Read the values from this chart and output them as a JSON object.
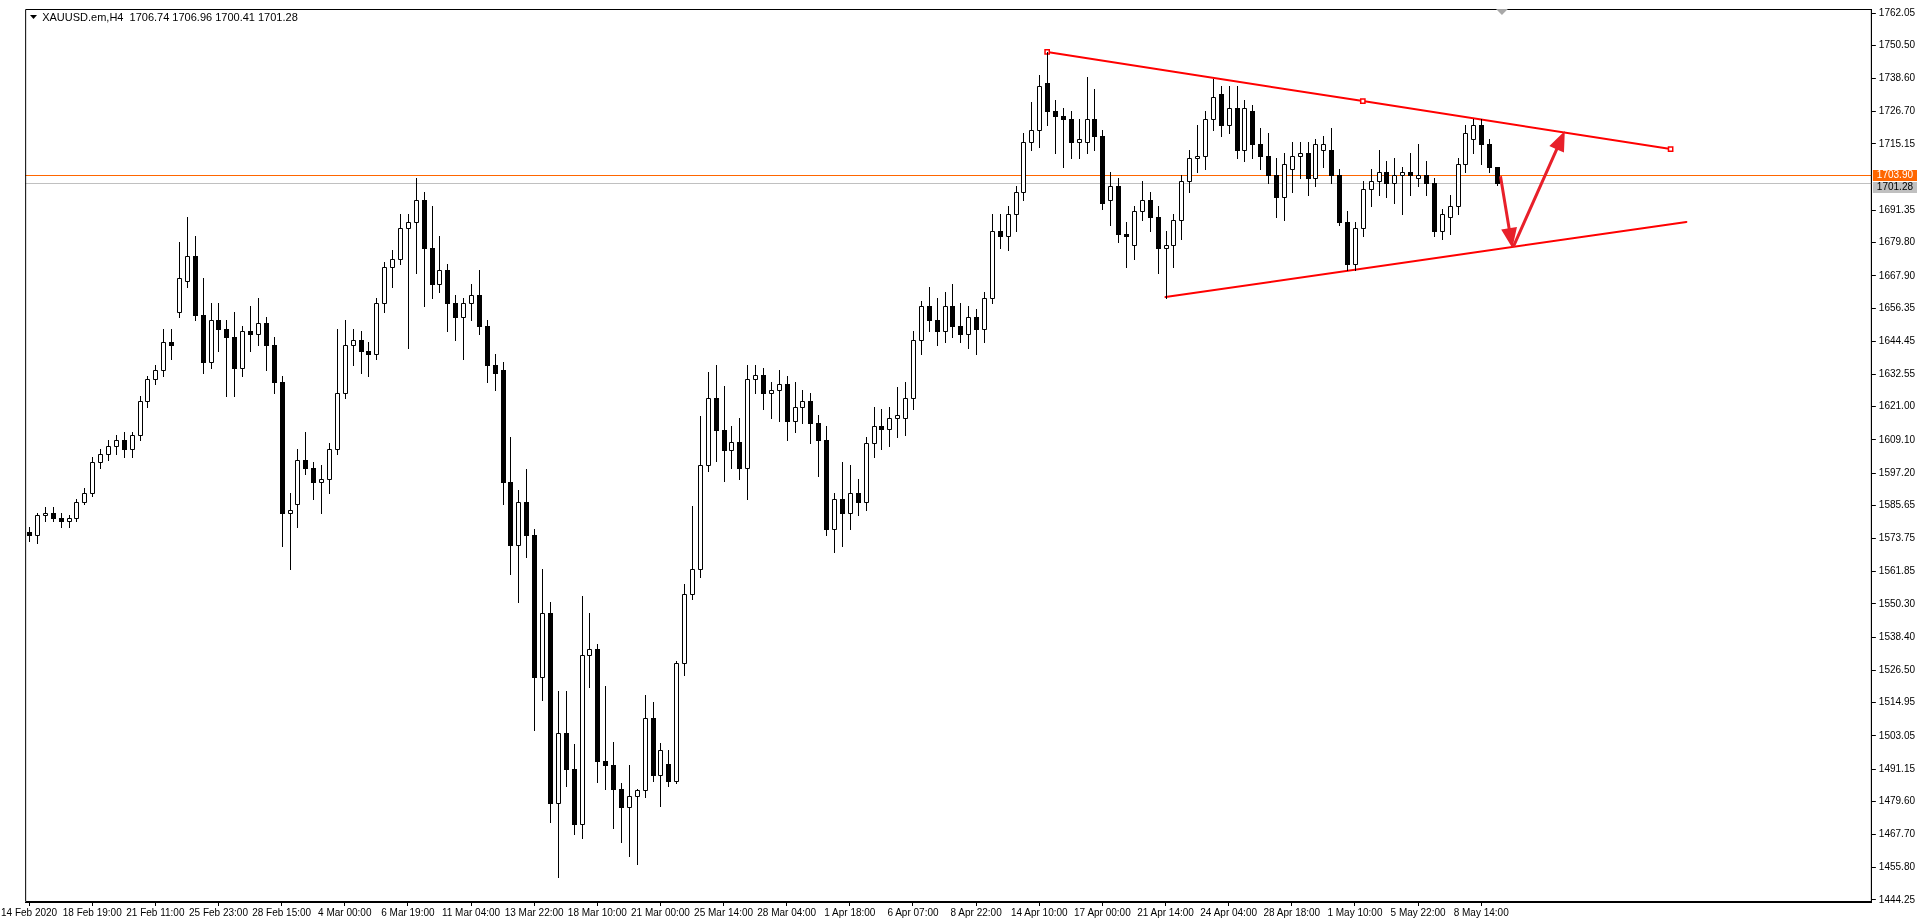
{
  "chart_data": {
    "type": "candlestick",
    "title": "XAUUSD.em,H4  1706.74 1706.96 1700.41 1701.28",
    "categories": [
      "14 Feb 2020",
      null,
      null,
      null,
      null,
      null,
      null,
      null,
      "18 Feb 19:00",
      null,
      null,
      null,
      null,
      null,
      null,
      null,
      "21 Feb 11:00",
      null,
      null,
      null,
      null,
      null,
      null,
      null,
      "25 Feb 23:00",
      null,
      null,
      null,
      null,
      null,
      null,
      null,
      "28 Feb 15:00",
      null,
      null,
      null,
      null,
      null,
      null,
      null,
      "4 Mar 00:00",
      null,
      null,
      null,
      null,
      null,
      null,
      null,
      "6 Mar 19:00",
      null,
      null,
      null,
      null,
      null,
      null,
      null,
      "11 Mar 04:00",
      null,
      null,
      null,
      null,
      null,
      null,
      null,
      "13 Mar 22:00",
      null,
      null,
      null,
      null,
      null,
      null,
      null,
      "18 Mar 10:00",
      null,
      null,
      null,
      null,
      null,
      null,
      null,
      "21 Mar 00:00",
      null,
      null,
      null,
      null,
      null,
      null,
      null,
      "25 Mar 14:00",
      null,
      null,
      null,
      null,
      null,
      null,
      null,
      "28 Mar 04:00",
      null,
      null,
      null,
      null,
      null,
      null,
      null,
      "1 Apr 18:00",
      null,
      null,
      null,
      null,
      null,
      null,
      null,
      "6 Apr 07:00",
      null,
      null,
      null,
      null,
      null,
      null,
      null,
      "8 Apr 22:00",
      null,
      null,
      null,
      null,
      null,
      null,
      null,
      "14 Apr 10:00",
      null,
      null,
      null,
      null,
      null,
      null,
      null,
      "17 Apr 00:00",
      null,
      null,
      null,
      null,
      null,
      null,
      null,
      "21 Apr 14:00",
      null,
      null,
      null,
      null,
      null,
      null,
      null,
      "24 Apr 04:00",
      null,
      null,
      null,
      null,
      null,
      null,
      null,
      "28 Apr 18:00",
      null,
      null,
      null,
      null,
      null,
      null,
      null,
      "1 May 10:00",
      null,
      null,
      null,
      null,
      null,
      null,
      null,
      "5 May 22:00",
      null,
      null,
      null,
      null,
      null,
      null,
      null,
      "8 May 14:00",
      null,
      null,
      null,
      null,
      null,
      null,
      null,
      null,
      null,
      null,
      null,
      null,
      null,
      null,
      null,
      null,
      null,
      null,
      null,
      null,
      null,
      null,
      null,
      null,
      null,
      null,
      null,
      null,
      null,
      null,
      null,
      null,
      null,
      null,
      null,
      null,
      null,
      null,
      null,
      null,
      null,
      null,
      null,
      null,
      null,
      null,
      null,
      null,
      null
    ],
    "ohlc": [
      [
        1576,
        1578,
        1573,
        1575
      ],
      [
        1575,
        1583,
        1572,
        1582
      ],
      [
        1582,
        1585,
        1580,
        1583
      ],
      [
        1583,
        1585,
        1580,
        1581
      ],
      [
        1581,
        1583,
        1578,
        1580
      ],
      [
        1580,
        1582,
        1578,
        1581
      ],
      [
        1581,
        1588,
        1580,
        1587
      ],
      [
        1587,
        1592,
        1586,
        1590
      ],
      [
        1590,
        1603,
        1589,
        1601
      ],
      [
        1601,
        1606,
        1599,
        1604
      ],
      [
        1604,
        1609,
        1602,
        1607
      ],
      [
        1607,
        1611,
        1604,
        1609
      ],
      [
        1609,
        1612,
        1603,
        1606
      ],
      [
        1606,
        1612,
        1603,
        1611
      ],
      [
        1611,
        1625,
        1609,
        1623
      ],
      [
        1623,
        1632,
        1621,
        1631
      ],
      [
        1631,
        1636,
        1629,
        1634
      ],
      [
        1634,
        1649,
        1632,
        1644
      ],
      [
        1644,
        1649,
        1638,
        1643
      ],
      [
        1655,
        1680,
        1653,
        1667
      ],
      [
        1666,
        1689,
        1664,
        1675
      ],
      [
        1675,
        1682,
        1652,
        1654
      ],
      [
        1654,
        1667,
        1633,
        1637
      ],
      [
        1637,
        1658,
        1635,
        1652
      ],
      [
        1652,
        1658,
        1641,
        1649
      ],
      [
        1649,
        1652,
        1625,
        1646
      ],
      [
        1646,
        1655,
        1625,
        1635
      ],
      [
        1635,
        1650,
        1632,
        1648
      ],
      [
        1648,
        1657,
        1641,
        1647
      ],
      [
        1647,
        1660,
        1643,
        1651
      ],
      [
        1651,
        1653,
        1634,
        1643
      ],
      [
        1643,
        1646,
        1626,
        1630
      ],
      [
        1630,
        1632,
        1571,
        1583
      ],
      [
        1583,
        1590,
        1563,
        1584
      ],
      [
        1586,
        1606,
        1578,
        1602
      ],
      [
        1602,
        1612,
        1597,
        1599
      ],
      [
        1599,
        1601,
        1588,
        1594
      ],
      [
        1594,
        1600,
        1583,
        1595
      ],
      [
        1595,
        1608,
        1590,
        1606
      ],
      [
        1606,
        1649,
        1604,
        1626
      ],
      [
        1626,
        1652,
        1624,
        1643
      ],
      [
        1643,
        1649,
        1636,
        1645
      ],
      [
        1645,
        1648,
        1633,
        1641
      ],
      [
        1641,
        1644,
        1632,
        1640
      ],
      [
        1640,
        1660,
        1638,
        1658
      ],
      [
        1658,
        1673,
        1655,
        1671
      ],
      [
        1671,
        1677,
        1664,
        1674
      ],
      [
        1674,
        1690,
        1672,
        1685
      ],
      [
        1685,
        1690,
        1642,
        1687
      ],
      [
        1687,
        1703,
        1669,
        1695
      ],
      [
        1695,
        1698,
        1657,
        1678
      ],
      [
        1678,
        1693,
        1660,
        1665
      ],
      [
        1665,
        1682,
        1662,
        1670
      ],
      [
        1670,
        1672,
        1648,
        1658
      ],
      [
        1658,
        1661,
        1645,
        1653
      ],
      [
        1653,
        1660,
        1638,
        1658
      ],
      [
        1658,
        1665,
        1652,
        1661
      ],
      [
        1661,
        1670,
        1647,
        1650
      ],
      [
        1650,
        1652,
        1630,
        1636
      ],
      [
        1636,
        1640,
        1627,
        1633
      ],
      [
        1634,
        1637,
        1586,
        1594
      ],
      [
        1594,
        1610,
        1561,
        1571.5
      ],
      [
        1571.5,
        1591,
        1551,
        1587
      ],
      [
        1587,
        1598.5,
        1567,
        1575
      ],
      [
        1575,
        1577,
        1505,
        1524
      ],
      [
        1524,
        1563,
        1516,
        1547
      ],
      [
        1547,
        1551,
        1472,
        1479
      ],
      [
        1479,
        1519,
        1452.5,
        1504
      ],
      [
        1504,
        1519,
        1485,
        1491
      ],
      [
        1491,
        1500,
        1468,
        1471.5
      ],
      [
        1471.5,
        1553,
        1466.5,
        1532
      ],
      [
        1532,
        1547,
        1520.5,
        1534
      ],
      [
        1534,
        1536,
        1486.5,
        1494
      ],
      [
        1494,
        1521,
        1484,
        1492.5
      ],
      [
        1492.5,
        1501,
        1470,
        1484
      ],
      [
        1484,
        1486,
        1465,
        1477.5
      ],
      [
        1477.5,
        1492.5,
        1460,
        1481.5
      ],
      [
        1481.5,
        1484,
        1457,
        1483.5
      ],
      [
        1483.5,
        1517.5,
        1481,
        1509.5
      ],
      [
        1509.5,
        1515,
        1487,
        1489
      ],
      [
        1489,
        1500.5,
        1478,
        1498
      ],
      [
        1493,
        1498,
        1485,
        1487
      ],
      [
        1487,
        1530,
        1486,
        1529
      ],
      [
        1529,
        1557.5,
        1525,
        1554
      ],
      [
        1554,
        1585.5,
        1552,
        1563
      ],
      [
        1563,
        1617.5,
        1560,
        1600
      ],
      [
        1600,
        1633.5,
        1598,
        1624
      ],
      [
        1624,
        1636,
        1601.5,
        1612.5
      ],
      [
        1612.5,
        1628.5,
        1594.5,
        1605.5
      ],
      [
        1605.5,
        1614,
        1599,
        1608.5
      ],
      [
        1608.5,
        1617,
        1595,
        1599
      ],
      [
        1599,
        1636,
        1588,
        1631
      ],
      [
        1631,
        1636,
        1626,
        1632.5
      ],
      [
        1632.5,
        1635,
        1620,
        1626
      ],
      [
        1626,
        1630,
        1617,
        1627
      ],
      [
        1627,
        1634,
        1616,
        1629
      ],
      [
        1629,
        1632,
        1609,
        1616
      ],
      [
        1616,
        1630,
        1612,
        1621
      ],
      [
        1621,
        1627,
        1615,
        1623
      ],
      [
        1623,
        1626,
        1608,
        1615
      ],
      [
        1615,
        1618,
        1596,
        1609
      ],
      [
        1609,
        1614,
        1575,
        1577
      ],
      [
        1577,
        1590,
        1569,
        1588
      ],
      [
        1588,
        1601,
        1571,
        1583
      ],
      [
        1583,
        1600,
        1577,
        1590
      ],
      [
        1590,
        1595,
        1582,
        1587
      ],
      [
        1587,
        1610,
        1584,
        1608
      ],
      [
        1608,
        1621,
        1603,
        1614
      ],
      [
        1614,
        1620,
        1606,
        1613
      ],
      [
        1613,
        1621,
        1607,
        1617
      ],
      [
        1617,
        1628,
        1610,
        1618
      ],
      [
        1617,
        1630,
        1611,
        1624
      ],
      [
        1624,
        1648,
        1620,
        1645
      ],
      [
        1645,
        1659,
        1640,
        1657
      ],
      [
        1657,
        1664,
        1648,
        1652
      ],
      [
        1652,
        1660,
        1643,
        1648
      ],
      [
        1648,
        1662,
        1644,
        1657
      ],
      [
        1657,
        1665,
        1646,
        1650
      ],
      [
        1650,
        1658,
        1644,
        1647
      ],
      [
        1647,
        1657,
        1642,
        1653
      ],
      [
        1653,
        1656,
        1640,
        1649
      ],
      [
        1649,
        1662,
        1644,
        1660
      ],
      [
        1660,
        1690,
        1658,
        1684
      ],
      [
        1684,
        1690,
        1678,
        1682
      ],
      [
        1682,
        1693,
        1677,
        1690
      ],
      [
        1690,
        1700,
        1684,
        1698
      ],
      [
        1698,
        1719,
        1695,
        1716
      ],
      [
        1716,
        1730,
        1713,
        1720
      ],
      [
        1720,
        1740,
        1714,
        1736
      ],
      [
        1737,
        1748,
        1722,
        1727
      ],
      [
        1727,
        1731,
        1712,
        1725
      ],
      [
        1725,
        1728,
        1707,
        1724
      ],
      [
        1724,
        1727,
        1710,
        1716
      ],
      [
        1716,
        1724,
        1710,
        1717
      ],
      [
        1716,
        1739,
        1712,
        1724
      ],
      [
        1724,
        1735,
        1713,
        1718
      ],
      [
        1718,
        1720,
        1692,
        1694
      ],
      [
        1695,
        1705,
        1686,
        1700
      ],
      [
        1700,
        1703,
        1680,
        1683
      ],
      [
        1683,
        1687,
        1671,
        1682
      ],
      [
        1679,
        1693,
        1674,
        1691
      ],
      [
        1691,
        1702,
        1688,
        1695
      ],
      [
        1695,
        1698,
        1684,
        1689
      ],
      [
        1689,
        1693,
        1669,
        1678
      ],
      [
        1678,
        1684,
        1660,
        1679
      ],
      [
        1679,
        1690,
        1671,
        1688
      ],
      [
        1688,
        1704,
        1681,
        1702
      ],
      [
        1702,
        1713,
        1698,
        1710
      ],
      [
        1710,
        1722,
        1705,
        1711
      ],
      [
        1711,
        1727,
        1706,
        1724
      ],
      [
        1724,
        1738.5,
        1720,
        1732
      ],
      [
        1733,
        1736,
        1718,
        1722
      ],
      [
        1722,
        1736,
        1719,
        1728
      ],
      [
        1728,
        1736,
        1710,
        1713
      ],
      [
        1713,
        1731,
        1709,
        1728
      ],
      [
        1727,
        1729,
        1710,
        1715
      ],
      [
        1715,
        1721,
        1706,
        1711
      ],
      [
        1711,
        1719,
        1701,
        1704
      ],
      [
        1704,
        1710,
        1689,
        1696
      ],
      [
        1696,
        1712,
        1688,
        1708
      ],
      [
        1706,
        1716,
        1698,
        1711
      ],
      [
        1711,
        1716,
        1703,
        1712
      ],
      [
        1712,
        1716,
        1697,
        1703
      ],
      [
        1703,
        1717,
        1700,
        1715
      ],
      [
        1713,
        1718,
        1707,
        1715
      ],
      [
        1713,
        1721,
        1701,
        1704
      ],
      [
        1704,
        1706,
        1686,
        1687
      ],
      [
        1687,
        1691,
        1670,
        1672
      ],
      [
        1672,
        1687,
        1670,
        1685
      ],
      [
        1685,
        1702,
        1682,
        1699
      ],
      [
        1699,
        1706,
        1693,
        1702
      ],
      [
        1702,
        1713,
        1697,
        1705
      ],
      [
        1705,
        1709,
        1696,
        1701
      ],
      [
        1701,
        1710,
        1694,
        1704
      ],
      [
        1704,
        1707,
        1690,
        1705
      ],
      [
        1705,
        1712,
        1697,
        1704
      ],
      [
        1703,
        1715,
        1700,
        1704
      ],
      [
        1704,
        1709,
        1697,
        1701
      ],
      [
        1701,
        1703,
        1682,
        1684
      ],
      [
        1684,
        1692,
        1681,
        1690
      ],
      [
        1689,
        1697,
        1683,
        1693
      ],
      [
        1693,
        1710,
        1690,
        1708
      ],
      [
        1708,
        1722,
        1705,
        1719
      ],
      [
        1717,
        1724,
        1712,
        1722
      ],
      [
        1722,
        1724,
        1708,
        1715
      ],
      [
        1715,
        1717,
        1705,
        1707
      ],
      [
        1706.74,
        1706.96,
        1700.41,
        1701.28
      ],
      null,
      null,
      null,
      null,
      null,
      null,
      null,
      null,
      null,
      null,
      null,
      null,
      null,
      null,
      null,
      null,
      null,
      null,
      null,
      null,
      null,
      null,
      null,
      null,
      null,
      null,
      null,
      null,
      null,
      null,
      null,
      null,
      null,
      null,
      null,
      null,
      null,
      null,
      null,
      null,
      null,
      null,
      null,
      null,
      null,
      null,
      null
    ],
    "colors": [
      "#000000",
      "#ffffff",
      "#ffffff",
      "#000000",
      "#000000",
      "#ffffff",
      "#ffffff",
      "#ffffff",
      "#ffffff",
      "#ffffff",
      "#ffffff",
      "#ffffff",
      "#000000",
      "#ffffff",
      "#ffffff",
      "#ffffff",
      "#ffffff",
      "#ffffff",
      "#000000",
      "#ffffff",
      "#ffffff",
      "#000000",
      "#000000",
      "#ffffff",
      "#000000",
      "#000000",
      "#000000",
      "#ffffff",
      "#000000",
      "#ffffff",
      "#000000",
      "#000000",
      "#000000",
      "#ffffff",
      "#ffffff",
      "#000000",
      "#000000",
      "#ffffff",
      "#ffffff",
      "#ffffff",
      "#ffffff",
      "#ffffff",
      "#000000",
      "#000000",
      "#ffffff",
      "#ffffff",
      "#ffffff",
      "#ffffff",
      "#ffffff",
      "#ffffff",
      "#000000",
      "#000000",
      "#ffffff",
      "#000000",
      "#000000",
      "#ffffff",
      "#ffffff",
      "#000000",
      "#000000",
      "#000000",
      "#000000",
      "#000000",
      "#ffffff",
      "#000000",
      "#000000",
      "#ffffff",
      "#000000",
      "#ffffff",
      "#000000",
      "#000000",
      "#ffffff",
      "#ffffff",
      "#000000",
      "#000000",
      "#000000",
      "#000000",
      "#ffffff",
      "#ffffff",
      "#ffffff",
      "#000000",
      "#ffffff",
      "#000000",
      "#ffffff",
      "#ffffff",
      "#ffffff",
      "#ffffff",
      "#ffffff",
      "#000000",
      "#000000",
      "#ffffff",
      "#000000",
      "#ffffff",
      "#ffffff",
      "#000000",
      "#ffffff",
      "#ffffff",
      "#000000",
      "#ffffff",
      "#ffffff",
      "#000000",
      "#000000",
      "#000000",
      "#ffffff",
      "#000000",
      "#ffffff",
      "#000000",
      "#ffffff",
      "#ffffff",
      "#000000",
      "#ffffff",
      "#ffffff",
      "#ffffff",
      "#ffffff",
      "#ffffff",
      "#000000",
      "#000000",
      "#ffffff",
      "#000000",
      "#000000",
      "#ffffff",
      "#000000",
      "#ffffff",
      "#ffffff",
      "#000000",
      "#ffffff",
      "#ffffff",
      "#ffffff",
      "#ffffff",
      "#ffffff",
      "#000000",
      "#000000",
      "#000000",
      "#000000",
      "#ffffff",
      "#ffffff",
      "#000000",
      "#000000",
      "#ffffff",
      "#000000",
      "#000000",
      "#ffffff",
      "#ffffff",
      "#000000",
      "#000000",
      "#ffffff",
      "#ffffff",
      "#ffffff",
      "#ffffff",
      "#ffffff",
      "#ffffff",
      "#ffffff",
      "#000000",
      "#ffffff",
      "#000000",
      "#ffffff",
      "#000000",
      "#000000",
      "#000000",
      "#000000",
      "#ffffff",
      "#ffffff",
      "#ffffff",
      "#000000",
      "#ffffff",
      "#ffffff",
      "#000000",
      "#000000",
      "#000000",
      "#ffffff",
      "#ffffff",
      "#ffffff",
      "#ffffff",
      "#000000",
      "#ffffff",
      "#ffffff",
      "#000000",
      "#ffffff",
      "#000000",
      "#000000",
      "#ffffff",
      "#ffffff",
      "#ffffff",
      "#ffffff",
      "#ffffff",
      "#000000",
      "#000000",
      "#000000",
      null,
      null,
      null,
      null,
      null,
      null,
      null,
      null,
      null,
      null,
      null,
      null,
      null,
      null,
      null,
      null,
      null,
      null,
      null,
      null,
      null,
      null,
      null,
      null,
      null,
      null,
      null,
      null,
      null,
      null,
      null,
      null,
      null,
      null,
      null,
      null,
      null,
      null,
      null,
      null,
      null,
      null,
      null,
      null,
      null,
      null,
      null
    ],
    "series": [
      {
        "type": "line",
        "color": "#ff0000",
        "marker": "square",
        "values": [
          null,
          null,
          null,
          null,
          null,
          null,
          null,
          null,
          null,
          null,
          null,
          null,
          null,
          null,
          null,
          null,
          null,
          null,
          null,
          null,
          null,
          null,
          null,
          null,
          null,
          null,
          null,
          null,
          null,
          null,
          null,
          null,
          null,
          null,
          null,
          null,
          null,
          null,
          null,
          null,
          null,
          null,
          null,
          null,
          null,
          null,
          null,
          null,
          null,
          null,
          null,
          null,
          null,
          null,
          null,
          null,
          null,
          null,
          null,
          null,
          null,
          null,
          null,
          null,
          null,
          null,
          null,
          null,
          null,
          null,
          null,
          null,
          null,
          null,
          null,
          null,
          null,
          null,
          null,
          null,
          null,
          null,
          null,
          null,
          null,
          null,
          null,
          null,
          null,
          null,
          null,
          null,
          null,
          null,
          null,
          null,
          null,
          null,
          null,
          null,
          null,
          null,
          null,
          null,
          null,
          null,
          null,
          null,
          null,
          null,
          null,
          null,
          null,
          null,
          null,
          null,
          null,
          null,
          null,
          null,
          null,
          null,
          null,
          null,
          null,
          null,
          null,
          null,
          null,
          1748.1,
          null,
          null,
          null,
          null,
          null,
          null,
          null,
          null,
          null,
          null,
          null,
          null,
          null,
          null,
          null,
          null,
          null,
          null,
          null,
          null,
          null,
          null,
          null,
          null,
          null,
          null,
          null,
          null,
          null,
          null,
          null,
          null,
          null,
          null,
          null,
          null,
          null,
          null,
          null,
          1730.5,
          null,
          null,
          null,
          null,
          null,
          null,
          null,
          null,
          null,
          null,
          null,
          null,
          null,
          null,
          null,
          null,
          null,
          null,
          null,
          null,
          null,
          null,
          null,
          null,
          null,
          null,
          null,
          null,
          null,
          null,
          null,
          null,
          null,
          null,
          null,
          null,
          null,
          null,
          1713.3,
          null,
          null,
          null,
          null,
          null,
          null,
          null,
          null,
          null,
          null,
          null,
          null,
          null,
          null,
          null,
          null,
          null,
          null,
          null,
          null,
          null,
          null,
          null,
          null,
          null
        ]
      },
      {
        "type": "line",
        "color": "#ff0000",
        "marker": "none",
        "values": [
          null,
          null,
          null,
          null,
          null,
          null,
          null,
          null,
          null,
          null,
          null,
          null,
          null,
          null,
          null,
          null,
          null,
          null,
          null,
          null,
          null,
          null,
          null,
          null,
          null,
          null,
          null,
          null,
          null,
          null,
          null,
          null,
          null,
          null,
          null,
          null,
          null,
          null,
          null,
          null,
          null,
          null,
          null,
          null,
          null,
          null,
          null,
          null,
          null,
          null,
          null,
          null,
          null,
          null,
          null,
          null,
          null,
          null,
          null,
          null,
          null,
          null,
          null,
          null,
          null,
          null,
          null,
          null,
          null,
          null,
          null,
          null,
          null,
          null,
          null,
          null,
          null,
          null,
          null,
          null,
          null,
          null,
          null,
          null,
          null,
          null,
          null,
          null,
          null,
          null,
          null,
          null,
          null,
          null,
          null,
          null,
          null,
          null,
          null,
          null,
          null,
          null,
          null,
          null,
          null,
          null,
          null,
          null,
          null,
          null,
          null,
          null,
          null,
          null,
          null,
          null,
          null,
          null,
          null,
          null,
          null,
          null,
          null,
          null,
          null,
          null,
          null,
          null,
          null,
          null,
          null,
          null,
          null,
          null,
          null,
          null,
          null,
          null,
          null,
          null,
          null,
          null,
          null,
          null,
          1660.3,
          null,
          null,
          null,
          null,
          null,
          null,
          null,
          null,
          null,
          null,
          null,
          null,
          null,
          null,
          null,
          null,
          null,
          null,
          null,
          null,
          null,
          null,
          null,
          null,
          null,
          null,
          null,
          null,
          null,
          null,
          null,
          null,
          null,
          null,
          null,
          null,
          null,
          null,
          null,
          null,
          null,
          null,
          null,
          null,
          null,
          null,
          null,
          null,
          null,
          null,
          null,
          null,
          null,
          null,
          null,
          null,
          null,
          null,
          null,
          null,
          null,
          null,
          null,
          null,
          null,
          1687.2,
          null,
          null,
          null,
          null,
          null,
          null,
          null,
          null,
          null,
          null,
          null,
          null,
          null,
          null,
          null,
          null,
          null,
          null,
          null,
          null,
          null,
          null,
          null
        ]
      }
    ],
    "ylim": [
      1443.5,
      1763.5
    ],
    "yticks": [
      1762.05,
      {
        "value": 1750.5,
        "label": "1750.50"
      },
      {
        "value": 1738.6,
        "label": "1738.60"
      },
      {
        "value": 1726.7,
        "label": "1726.70"
      },
      1715.15,
      1691.35,
      {
        "value": 1679.8,
        "label": "1679.80"
      },
      {
        "value": 1667.9,
        "label": "1667.90"
      },
      1656.35,
      1644.45,
      1632.55,
      {
        "value": 1621,
        "label": "1621.00"
      },
      {
        "value": 1609.1,
        "label": "1609.10"
      },
      {
        "value": 1597.2,
        "label": "1597.20"
      },
      1585.65,
      1573.75,
      1561.85,
      {
        "value": 1550.3,
        "label": "1550.30"
      },
      {
        "value": 1538.4,
        "label": "1538.40"
      },
      {
        "value": 1526.5,
        "label": "1526.50"
      },
      1514.95,
      1503.05,
      1491.15,
      {
        "value": 1479.6,
        "label": "1479.60"
      },
      {
        "value": 1467.7,
        "label": "1467.70"
      },
      {
        "value": 1455.8,
        "label": "1455.80"
      },
      1444.25
    ],
    "ref_lines": [
      {
        "axis": "y",
        "value": 1703.9,
        "label": "1703.90",
        "color": "#ff6600"
      },
      {
        "axis": "y",
        "value": 1701.28,
        "label": "1701.28",
        "color": "#c0c0c0"
      }
    ],
    "grid": false,
    "legend": false
  }
}
